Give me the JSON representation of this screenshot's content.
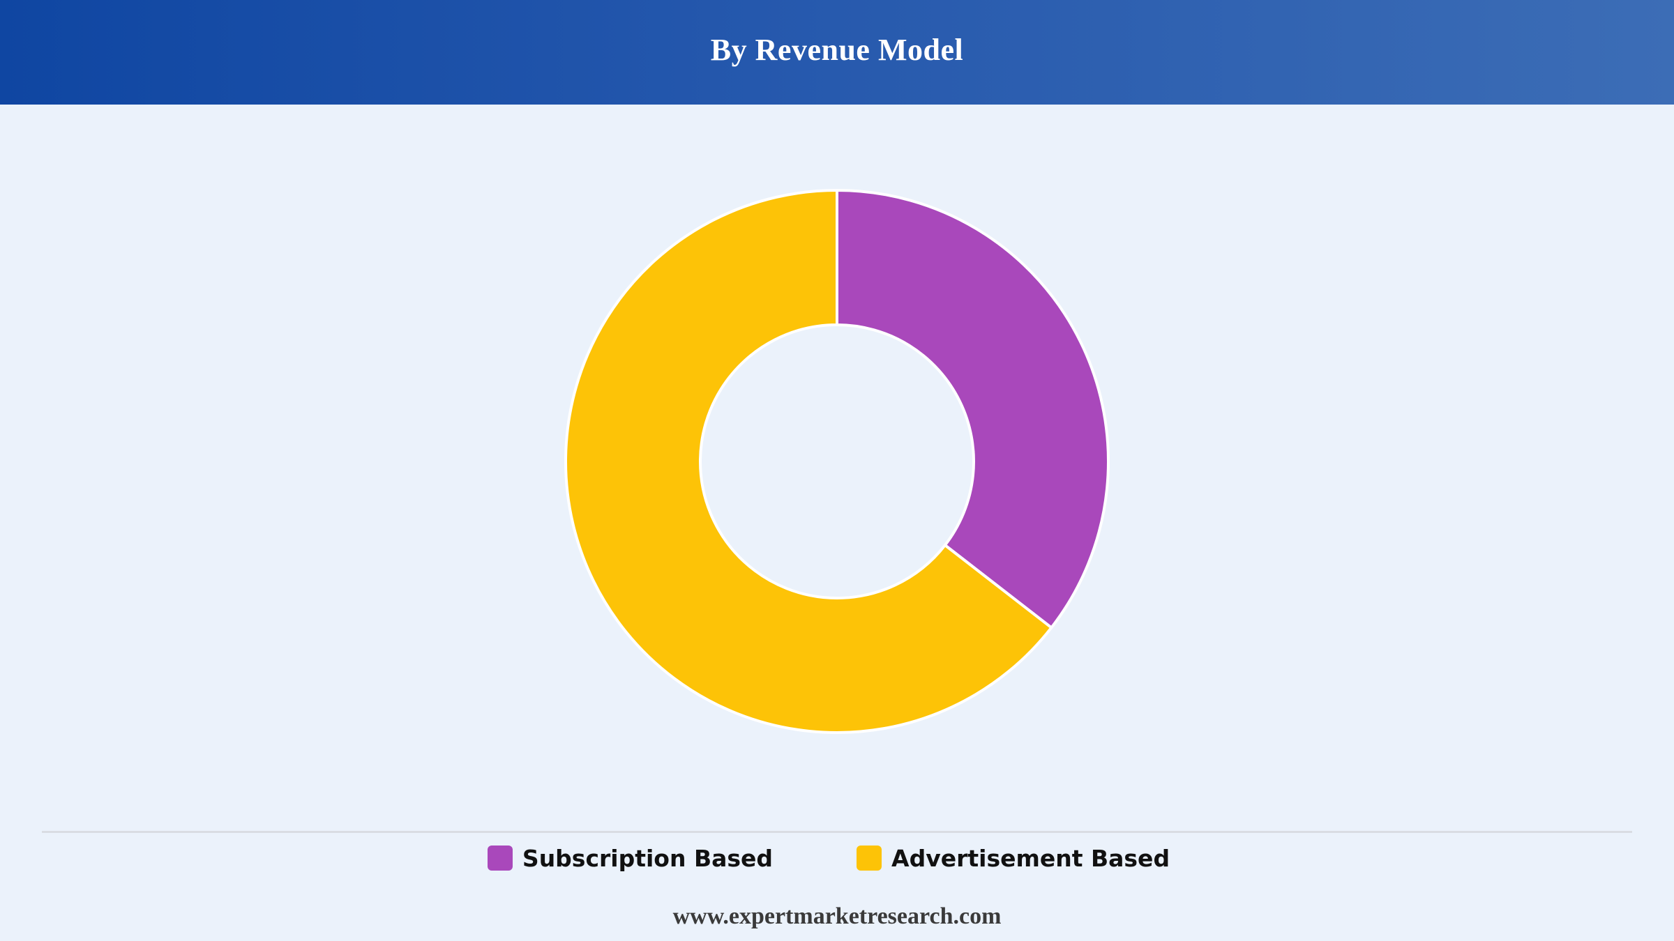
{
  "header": {
    "title": "By Revenue Model"
  },
  "footer": {
    "source_url": "www.expertmarketresearch.com"
  },
  "colors": {
    "header_gradient_start": "#0f46a2",
    "header_gradient_end": "#3c6db6",
    "background": "#ebf2fb",
    "slice_border": "#ffffff"
  },
  "chart_data": {
    "type": "pie",
    "style": "donut",
    "title": "By Revenue Model",
    "legend_position": "bottom",
    "slices": [
      {
        "label": "Subscription Based",
        "value": 35.5,
        "color": "#a948bb"
      },
      {
        "label": "Advertisement Based",
        "value": 64.5,
        "color": "#fdc307"
      }
    ]
  }
}
